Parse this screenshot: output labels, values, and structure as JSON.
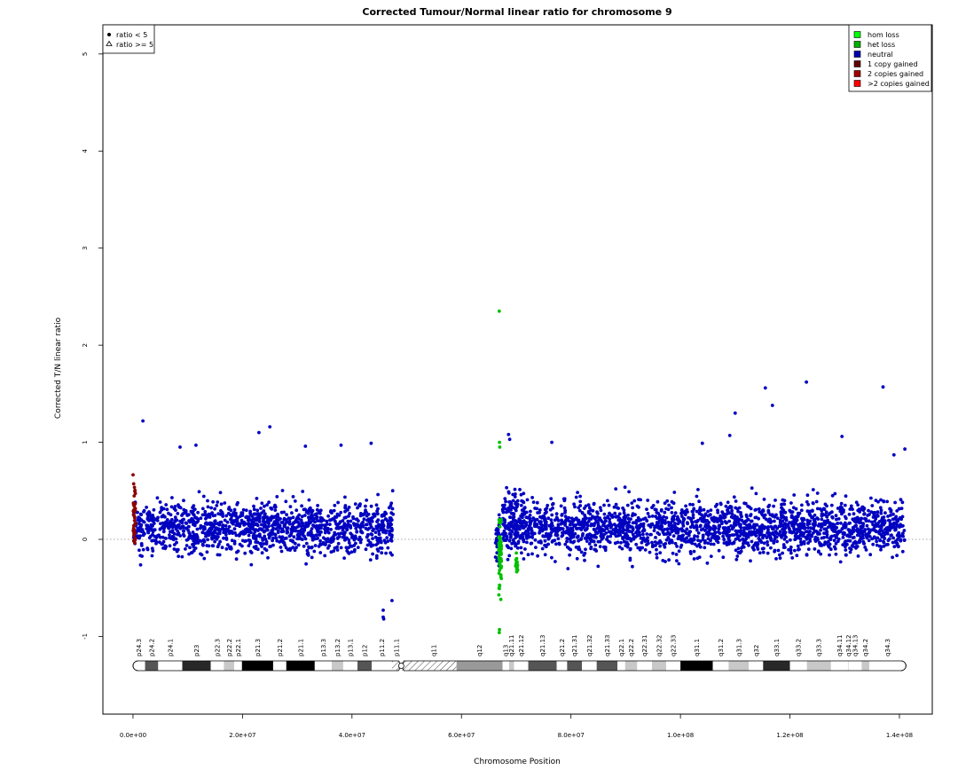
{
  "chart_data": {
    "type": "scatter",
    "title": "Corrected Tumour/Normal linear ratio for chromosome  9",
    "xlabel": "Chromosome Position",
    "ylabel": "Corrected T/N linear ratio",
    "xlim": [
      -5500000,
      146000000
    ],
    "ylim": [
      -1.8,
      5.3
    ],
    "x_ticks": [
      0,
      20000000,
      40000000,
      60000000,
      80000000,
      100000000,
      120000000,
      140000000
    ],
    "x_tick_labels": [
      "0.0e+00",
      "2.0e+07",
      "4.0e+07",
      "6.0e+07",
      "8.0e+07",
      "1.0e+08",
      "1.2e+08",
      "1.4e+08"
    ],
    "y_ticks": [
      -1,
      0,
      1,
      2,
      3,
      4,
      5
    ],
    "y_tick_labels": [
      "-1",
      "0",
      "1",
      "2",
      "3",
      "4",
      "5"
    ],
    "reference_line": {
      "y": 0,
      "style": "dotted",
      "color": "#888888"
    },
    "legend_shape": {
      "position": "top-left",
      "entries": [
        {
          "symbol": "filled-circle",
          "label": "ratio < 5"
        },
        {
          "symbol": "open-triangle",
          "label": "ratio >= 5"
        }
      ]
    },
    "legend": {
      "position": "top-right",
      "entries": [
        {
          "label": "hom loss",
          "color": "#00ff00"
        },
        {
          "label": "het loss",
          "color": "#00b000"
        },
        {
          "label": "neutral",
          "color": "#0000b0"
        },
        {
          "label": "1 copy gained",
          "color": "#600000"
        },
        {
          "label": "2 copies gained",
          "color": "#a00000"
        },
        {
          "label": ">2 copies gained",
          "color": "#ff0000"
        }
      ]
    },
    "series": [
      {
        "name": "neutral",
        "color": "#0000c0",
        "regions": [
          {
            "x_start": 100000,
            "x_end": 47500000,
            "y_low": -0.42,
            "y_high": 0.66,
            "count": 1300
          },
          {
            "x_start": 66200000,
            "x_end": 67000000,
            "y_low": -0.45,
            "y_high": 0.5,
            "count": 40
          },
          {
            "x_start": 67500000,
            "x_end": 71500000,
            "y_low": -0.55,
            "y_high": 0.85,
            "count": 180
          },
          {
            "x_start": 71500000,
            "x_end": 141000000,
            "y_low": -0.42,
            "y_high": 0.66,
            "count": 2000
          }
        ],
        "points": [
          {
            "x": 1800000,
            "y": 1.22
          },
          {
            "x": 8600000,
            "y": 0.95
          },
          {
            "x": 11500000,
            "y": 0.97
          },
          {
            "x": 23000000,
            "y": 1.1
          },
          {
            "x": 25000000,
            "y": 1.16
          },
          {
            "x": 31500000,
            "y": 0.96
          },
          {
            "x": 38000000,
            "y": 0.97
          },
          {
            "x": 43500000,
            "y": 0.99
          },
          {
            "x": 45700000,
            "y": -0.73
          },
          {
            "x": 45700000,
            "y": -0.8
          },
          {
            "x": 45800000,
            "y": -0.82
          },
          {
            "x": 47300000,
            "y": -0.63
          },
          {
            "x": 68600000,
            "y": 1.08
          },
          {
            "x": 68800000,
            "y": 1.03
          },
          {
            "x": 76500000,
            "y": 1.0
          },
          {
            "x": 104000000,
            "y": 0.99
          },
          {
            "x": 109000000,
            "y": 1.07
          },
          {
            "x": 110000000,
            "y": 1.3
          },
          {
            "x": 115500000,
            "y": 1.56
          },
          {
            "x": 116800000,
            "y": 1.38
          },
          {
            "x": 123000000,
            "y": 1.62
          },
          {
            "x": 129500000,
            "y": 1.06
          },
          {
            "x": 137000000,
            "y": 1.57
          },
          {
            "x": 139000000,
            "y": 0.87
          },
          {
            "x": 141000000,
            "y": 0.93
          }
        ]
      },
      {
        "name": "1 copy gained",
        "color": "#8b0000",
        "regions": [
          {
            "x_start": 0,
            "x_end": 500000,
            "y_low": -0.4,
            "y_high": 0.87,
            "count": 45
          }
        ],
        "points": []
      },
      {
        "name": "het loss",
        "color": "#00c000",
        "regions": [
          {
            "x_start": 66800000,
            "x_end": 67300000,
            "y_low": -0.95,
            "y_high": 0.6,
            "count": 60
          },
          {
            "x_start": 69900000,
            "x_end": 70300000,
            "y_low": -0.47,
            "y_high": -0.05,
            "count": 20
          }
        ],
        "points": [
          {
            "x": 66900000,
            "y": 2.35
          },
          {
            "x": 66950000,
            "y": 1.0
          },
          {
            "x": 67000000,
            "y": 0.95
          },
          {
            "x": 66900000,
            "y": -0.96
          },
          {
            "x": 66950000,
            "y": -0.93
          }
        ]
      }
    ],
    "ideogram": {
      "bands": [
        {
          "name": "p24.3",
          "start": 0,
          "end": 2200000,
          "stain": "gneg"
        },
        {
          "name": "p24.2",
          "start": 2200000,
          "end": 4600000,
          "stain": "gpos50"
        },
        {
          "name": "p24.1",
          "start": 4600000,
          "end": 9000000,
          "stain": "gneg"
        },
        {
          "name": "p23",
          "start": 9000000,
          "end": 14200000,
          "stain": "gpos75"
        },
        {
          "name": "p22.3",
          "start": 14200000,
          "end": 16600000,
          "stain": "gneg"
        },
        {
          "name": "p22.2",
          "start": 16600000,
          "end": 18500000,
          "stain": "gpos25"
        },
        {
          "name": "p22.1",
          "start": 18500000,
          "end": 19900000,
          "stain": "gneg"
        },
        {
          "name": "p21.3",
          "start": 19900000,
          "end": 25600000,
          "stain": "gpos100"
        },
        {
          "name": "p21.2",
          "start": 25600000,
          "end": 28000000,
          "stain": "gneg"
        },
        {
          "name": "p21.1",
          "start": 28000000,
          "end": 33200000,
          "stain": "gpos100"
        },
        {
          "name": "p13.3",
          "start": 33200000,
          "end": 36300000,
          "stain": "gneg"
        },
        {
          "name": "p13.2",
          "start": 36300000,
          "end": 38400000,
          "stain": "gpos25"
        },
        {
          "name": "p13.1",
          "start": 38400000,
          "end": 41000000,
          "stain": "gneg"
        },
        {
          "name": "p12",
          "start": 41000000,
          "end": 43600000,
          "stain": "gpos50"
        },
        {
          "name": "p11.2",
          "start": 43600000,
          "end": 47300000,
          "stain": "gneg"
        },
        {
          "name": "p11.1",
          "start": 47300000,
          "end": 49000000,
          "stain": "acen"
        },
        {
          "name": "",
          "start": 49000000,
          "end": 50700000,
          "stain": "acen"
        },
        {
          "name": "q11",
          "start": 50700000,
          "end": 59100000,
          "stain": "gvar"
        },
        {
          "name": "q12",
          "start": 59100000,
          "end": 67500000,
          "stain": "gvar2"
        },
        {
          "name": "q13",
          "start": 67500000,
          "end": 68700000,
          "stain": "gneg"
        },
        {
          "name": "q21.11",
          "start": 68700000,
          "end": 69600000,
          "stain": "gpos25"
        },
        {
          "name": "q21.12",
          "start": 69600000,
          "end": 72200000,
          "stain": "gneg"
        },
        {
          "name": "q21.13",
          "start": 72200000,
          "end": 77400000,
          "stain": "gpos50"
        },
        {
          "name": "q21.2",
          "start": 77400000,
          "end": 79300000,
          "stain": "gneg"
        },
        {
          "name": "q21.31",
          "start": 79300000,
          "end": 82000000,
          "stain": "gpos50"
        },
        {
          "name": "q21.32",
          "start": 82000000,
          "end": 84700000,
          "stain": "gneg"
        },
        {
          "name": "q21.33",
          "start": 84700000,
          "end": 88500000,
          "stain": "gpos50"
        },
        {
          "name": "q22.1",
          "start": 88500000,
          "end": 89900000,
          "stain": "gneg"
        },
        {
          "name": "q22.2",
          "start": 89900000,
          "end": 92100000,
          "stain": "gpos25"
        },
        {
          "name": "q22.31",
          "start": 92100000,
          "end": 94800000,
          "stain": "gneg"
        },
        {
          "name": "q22.32",
          "start": 94800000,
          "end": 97400000,
          "stain": "gpos25"
        },
        {
          "name": "q22.33",
          "start": 97400000,
          "end": 100000000,
          "stain": "gneg"
        },
        {
          "name": "q31.1",
          "start": 100000000,
          "end": 105900000,
          "stain": "gpos100"
        },
        {
          "name": "q31.2",
          "start": 105900000,
          "end": 108800000,
          "stain": "gneg"
        },
        {
          "name": "q31.3",
          "start": 108800000,
          "end": 112500000,
          "stain": "gpos25"
        },
        {
          "name": "q32",
          "start": 112500000,
          "end": 115100000,
          "stain": "gneg"
        },
        {
          "name": "q33.1",
          "start": 115100000,
          "end": 120000000,
          "stain": "gpos75"
        },
        {
          "name": "q33.2",
          "start": 120000000,
          "end": 123100000,
          "stain": "gneg"
        },
        {
          "name": "q33.3",
          "start": 123100000,
          "end": 127500000,
          "stain": "gpos25"
        },
        {
          "name": "q34.11",
          "start": 127500000,
          "end": 130600000,
          "stain": "gneg"
        },
        {
          "name": "q34.12",
          "start": 130600000,
          "end": 130700000,
          "stain": "gpos25"
        },
        {
          "name": "q34.13",
          "start": 130700000,
          "end": 133100000,
          "stain": "gneg"
        },
        {
          "name": "q34.2",
          "start": 133100000,
          "end": 134500000,
          "stain": "gpos25"
        },
        {
          "name": "q34.3",
          "start": 134500000,
          "end": 141200000,
          "stain": "gneg"
        }
      ],
      "stain_colors": {
        "gneg": "#ffffff",
        "gpos25": "#c8c8c8",
        "gpos50": "#555555",
        "gpos75": "#282828",
        "gpos100": "#000000",
        "acen": "hatch",
        "gvar": "hatch",
        "gvar2": "#999999"
      }
    }
  }
}
